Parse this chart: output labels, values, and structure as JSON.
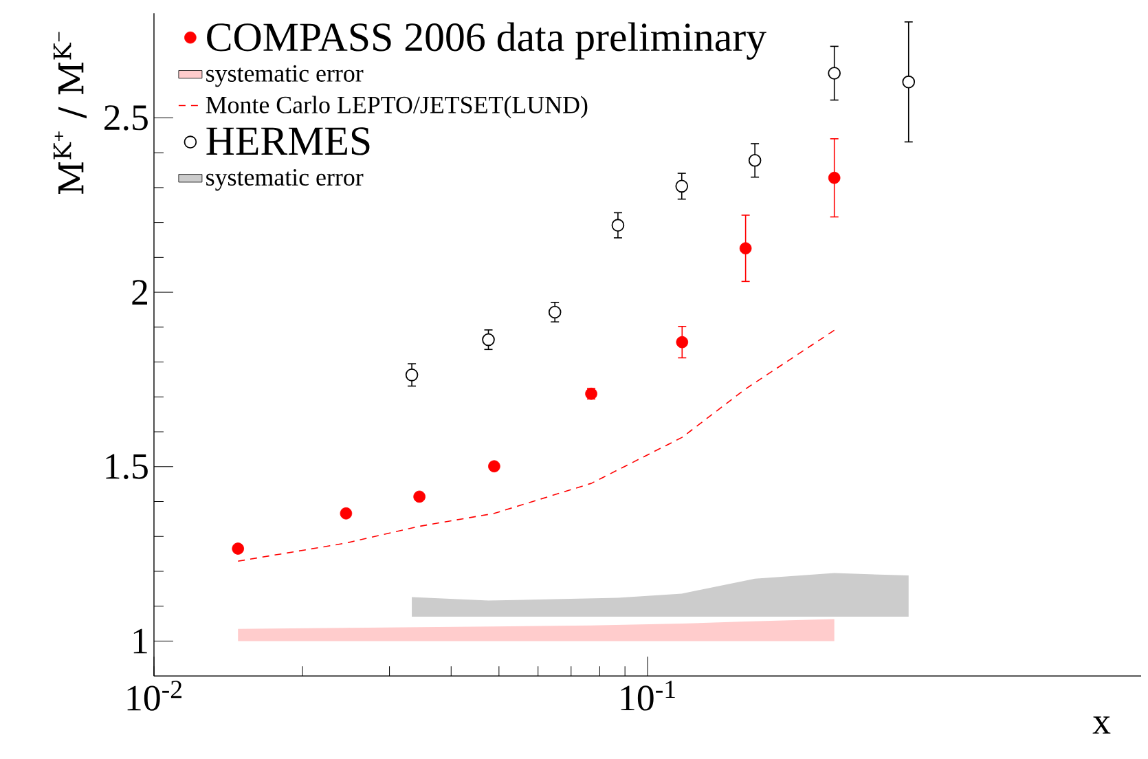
{
  "chart_data": {
    "type": "scatter",
    "xlabel": "x",
    "ylabel": "M$^{K⁺}$ / M$^{K⁻}$",
    "log": "x",
    "xlim": [
      0.01,
      1
    ],
    "ylim": [
      0.9,
      2.8
    ],
    "xticks": [
      {
        "value": 0.01,
        "label": "10$^{-2}$"
      },
      {
        "value": 0.1,
        "label": "10$^{-1}$"
      }
    ],
    "yticks": [
      1,
      1.5,
      2,
      2.5
    ],
    "grid": false,
    "legend": "top left",
    "series": [
      {
        "name": "COMPASS 2006 data preliminary",
        "marker": "circle",
        "color": "#ff0000",
        "x": [
          0.0148,
          0.0245,
          0.0345,
          0.0489,
          0.0769,
          0.1175,
          0.158,
          0.239
        ],
        "values": [
          1.265,
          1.366,
          1.414,
          1.501,
          1.709,
          1.857,
          2.126,
          2.328
        ],
        "errors": [
          null,
          null,
          null,
          null,
          0.015,
          0.045,
          0.095,
          0.112
        ]
      },
      {
        "name": "systematic error",
        "type": "line",
        "color": "#ffcccc",
        "x": [
          0.0148,
          0.0245,
          0.0345,
          0.0489,
          0.0769,
          0.1175,
          0.158,
          0.239
        ],
        "values": [
          null,
          null,
          null,
          null,
          null,
          null,
          null,
          null
        ],
        "lower": [
          1.0,
          1.0,
          1.0,
          1.0,
          1.0,
          1.0,
          1.0,
          1.0
        ],
        "upper": [
          1.035,
          1.038,
          1.04,
          1.042,
          1.045,
          1.05,
          1.056,
          1.063
        ]
      },
      {
        "name": "Monte Carlo LEPTO/JETSET(LUND)",
        "type": "line",
        "line_style": "dashed",
        "color": "#ff0000",
        "x": [
          0.0148,
          0.0245,
          0.0345,
          0.0489,
          0.0769,
          0.1175,
          0.158,
          0.239
        ],
        "values": [
          1.229,
          1.281,
          1.329,
          1.366,
          1.452,
          1.584,
          1.723,
          1.891
        ]
      },
      {
        "name": "HERMES",
        "marker": "circle",
        "color": "#000000",
        "x": [
          0.0333,
          0.0476,
          0.0649,
          0.0871,
          0.1173,
          0.165,
          0.239,
          0.338
        ],
        "values": [
          1.763,
          1.864,
          1.943,
          2.192,
          2.304,
          2.378,
          2.628,
          2.603
        ],
        "errors": [
          0.032,
          0.028,
          0.028,
          0.036,
          0.037,
          0.048,
          0.077,
          0.172
        ]
      },
      {
        "name": "systematic error",
        "type": "line",
        "color": "#cccccc",
        "x": [
          0.0333,
          0.0476,
          0.0649,
          0.0871,
          0.1173,
          0.165,
          0.239,
          0.338
        ],
        "values": [
          null,
          null,
          null,
          null,
          null,
          null,
          null,
          null
        ],
        "lower": [
          1.07,
          1.07,
          1.07,
          1.07,
          1.07,
          1.07,
          1.07,
          1.07
        ],
        "upper": [
          1.126,
          1.116,
          1.12,
          1.124,
          1.136,
          1.179,
          1.195,
          1.188
        ]
      }
    ]
  }
}
